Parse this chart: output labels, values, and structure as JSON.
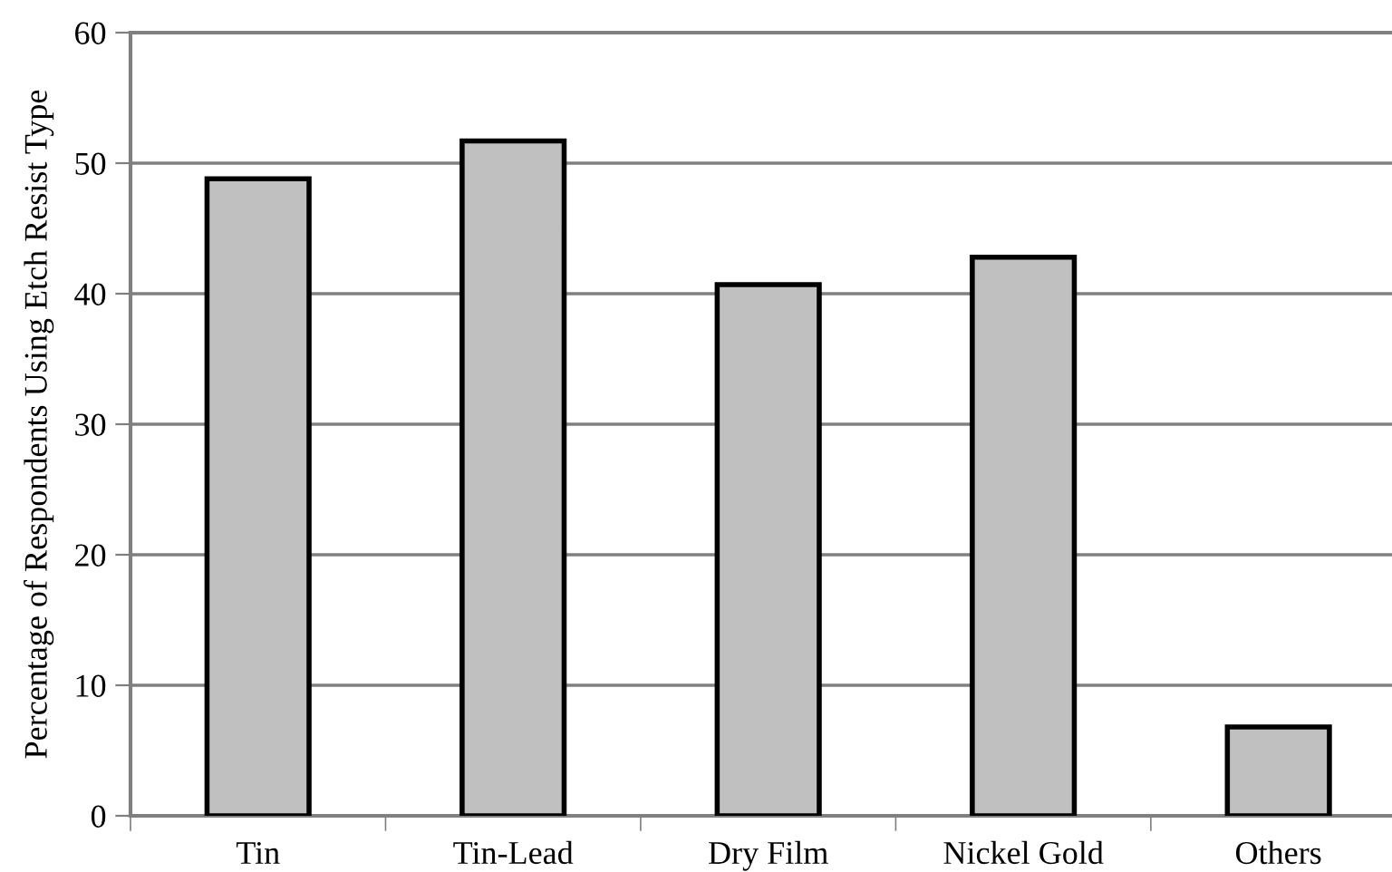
{
  "chart_data": {
    "type": "bar",
    "ylabel": "Percentage of Respondents Using Etch Resist Type",
    "categories": [
      "Tin",
      "Tin-Lead",
      "Dry Film",
      "Nickel Gold",
      "Others"
    ],
    "values": [
      48.8,
      51.7,
      40.7,
      42.8,
      6.8
    ],
    "color": "#c0c0c0",
    "ylim": [
      0,
      60
    ],
    "yticks": [
      0,
      10,
      20,
      30,
      40,
      50,
      60
    ],
    "grid": "y",
    "legend": false
  }
}
